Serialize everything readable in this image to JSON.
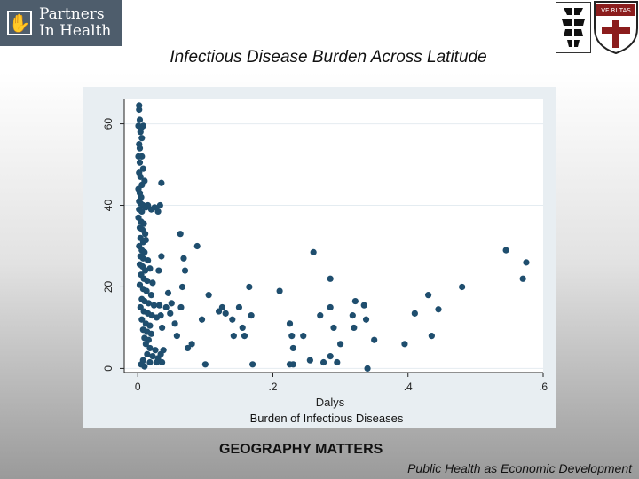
{
  "header": {
    "logo_text_line1": "Partners",
    "logo_text_line2": "In Health",
    "shield_text": "VE RI TAS"
  },
  "slide": {
    "title": "Infectious Disease Burden Across Latitude",
    "footer_main": "GEOGRAPHY MATTERS",
    "footer_sub": "Public Health as Economic Development"
  },
  "colors": {
    "marker": "#1f4e6e",
    "plot_bg": "#ffffff",
    "frame_bg": "#e8eef2",
    "grid": "#e4ecf1"
  },
  "chart_data": {
    "type": "scatter",
    "title": "",
    "xlabel": "Dalys",
    "xlabel_sub": "Burden of Infectious Diseases",
    "ylabel": "",
    "xlim": [
      -0.02,
      0.6
    ],
    "ylim": [
      -1,
      66
    ],
    "xticks": [
      0,
      0.2,
      0.4,
      0.6
    ],
    "xtick_labels": [
      "0",
      ".2",
      ".4",
      ".6"
    ],
    "yticks": [
      0,
      20,
      40,
      60
    ],
    "ytick_labels": [
      "0",
      "20",
      "40",
      "60"
    ],
    "grid": true,
    "points": [
      [
        0.002,
        64.5
      ],
      [
        0.002,
        63.5
      ],
      [
        0.003,
        61
      ],
      [
        0.001,
        59.5
      ],
      [
        0.005,
        59
      ],
      [
        0.008,
        59.5
      ],
      [
        0.004,
        58
      ],
      [
        0.006,
        56.5
      ],
      [
        0.002,
        55
      ],
      [
        0.003,
        54
      ],
      [
        0.001,
        52
      ],
      [
        0.006,
        52
      ],
      [
        0.003,
        50.5
      ],
      [
        0.008,
        49
      ],
      [
        0.002,
        48
      ],
      [
        0.004,
        47
      ],
      [
        0.006,
        45
      ],
      [
        0.01,
        46
      ],
      [
        0.001,
        44
      ],
      [
        0.003,
        43
      ],
      [
        0.005,
        42
      ],
      [
        0.002,
        41
      ],
      [
        0.004,
        40.5
      ],
      [
        0.008,
        40
      ],
      [
        0.012,
        39.5
      ],
      [
        0.002,
        39
      ],
      [
        0.006,
        38.5
      ],
      [
        0.015,
        40
      ],
      [
        0.02,
        39
      ],
      [
        0.025,
        39.5
      ],
      [
        0.03,
        38.5
      ],
      [
        0.001,
        37
      ],
      [
        0.005,
        36
      ],
      [
        0.009,
        35.5
      ],
      [
        0.003,
        34.5
      ],
      [
        0.007,
        34
      ],
      [
        0.011,
        33
      ],
      [
        0.004,
        32
      ],
      [
        0.008,
        31
      ],
      [
        0.012,
        31.5
      ],
      [
        0.002,
        30
      ],
      [
        0.006,
        29
      ],
      [
        0.01,
        28.5
      ],
      [
        0.004,
        27.5
      ],
      [
        0.008,
        27
      ],
      [
        0.015,
        26.5
      ],
      [
        0.003,
        25.5
      ],
      [
        0.007,
        25
      ],
      [
        0.011,
        24
      ],
      [
        0.018,
        24.5
      ],
      [
        0.005,
        23
      ],
      [
        0.009,
        22
      ],
      [
        0.014,
        21.5
      ],
      [
        0.022,
        21
      ],
      [
        0.003,
        20.5
      ],
      [
        0.008,
        19.5
      ],
      [
        0.013,
        19
      ],
      [
        0.02,
        18
      ],
      [
        0.006,
        17
      ],
      [
        0.01,
        16.5
      ],
      [
        0.016,
        16
      ],
      [
        0.024,
        15.5
      ],
      [
        0.004,
        15
      ],
      [
        0.009,
        14
      ],
      [
        0.015,
        13.5
      ],
      [
        0.021,
        13
      ],
      [
        0.028,
        12.5
      ],
      [
        0.006,
        12
      ],
      [
        0.012,
        11
      ],
      [
        0.018,
        10.5
      ],
      [
        0.008,
        9.5
      ],
      [
        0.014,
        9
      ],
      [
        0.02,
        8.5
      ],
      [
        0.01,
        7.5
      ],
      [
        0.016,
        7
      ],
      [
        0.012,
        6
      ],
      [
        0.018,
        5
      ],
      [
        0.026,
        4.5
      ],
      [
        0.014,
        3.5
      ],
      [
        0.022,
        3
      ],
      [
        0.03,
        2.5
      ],
      [
        0.008,
        2
      ],
      [
        0.018,
        1.5
      ],
      [
        0.028,
        1.5
      ],
      [
        0.035,
        45.5
      ],
      [
        0.033,
        40
      ],
      [
        0.035,
        27.5
      ],
      [
        0.031,
        24
      ],
      [
        0.032,
        15.5
      ],
      [
        0.034,
        13
      ],
      [
        0.036,
        10
      ],
      [
        0.038,
        4.5
      ],
      [
        0.034,
        3.5
      ],
      [
        0.036,
        1.5
      ],
      [
        0.005,
        1
      ],
      [
        0.01,
        0.5
      ],
      [
        0.045,
        18.5
      ],
      [
        0.05,
        16
      ],
      [
        0.042,
        15
      ],
      [
        0.048,
        13.5
      ],
      [
        0.055,
        11
      ],
      [
        0.058,
        8
      ],
      [
        0.063,
        33
      ],
      [
        0.068,
        27
      ],
      [
        0.07,
        24
      ],
      [
        0.066,
        20
      ],
      [
        0.064,
        15
      ],
      [
        0.074,
        5
      ],
      [
        0.08,
        6
      ],
      [
        0.088,
        30
      ],
      [
        0.095,
        12
      ],
      [
        0.1,
        1
      ],
      [
        0.105,
        18
      ],
      [
        0.12,
        14
      ],
      [
        0.125,
        15
      ],
      [
        0.13,
        13.5
      ],
      [
        0.14,
        12
      ],
      [
        0.142,
        8
      ],
      [
        0.15,
        15
      ],
      [
        0.155,
        10
      ],
      [
        0.158,
        8
      ],
      [
        0.165,
        20
      ],
      [
        0.168,
        13
      ],
      [
        0.17,
        1
      ],
      [
        0.21,
        19
      ],
      [
        0.225,
        11
      ],
      [
        0.228,
        8
      ],
      [
        0.23,
        5
      ],
      [
        0.225,
        1
      ],
      [
        0.23,
        1
      ],
      [
        0.245,
        8
      ],
      [
        0.255,
        2
      ],
      [
        0.26,
        28.5
      ],
      [
        0.27,
        13
      ],
      [
        0.275,
        1.5
      ],
      [
        0.285,
        22
      ],
      [
        0.285,
        15
      ],
      [
        0.29,
        10
      ],
      [
        0.285,
        3
      ],
      [
        0.295,
        1.5
      ],
      [
        0.3,
        6
      ],
      [
        0.318,
        13
      ],
      [
        0.32,
        10
      ],
      [
        0.322,
        16.5
      ],
      [
        0.335,
        15.5
      ],
      [
        0.338,
        12
      ],
      [
        0.34,
        0
      ],
      [
        0.35,
        7
      ],
      [
        0.395,
        6
      ],
      [
        0.41,
        13.5
      ],
      [
        0.43,
        18
      ],
      [
        0.435,
        8
      ],
      [
        0.445,
        14.5
      ],
      [
        0.48,
        20
      ],
      [
        0.545,
        29
      ],
      [
        0.57,
        22
      ],
      [
        0.575,
        26
      ]
    ]
  }
}
